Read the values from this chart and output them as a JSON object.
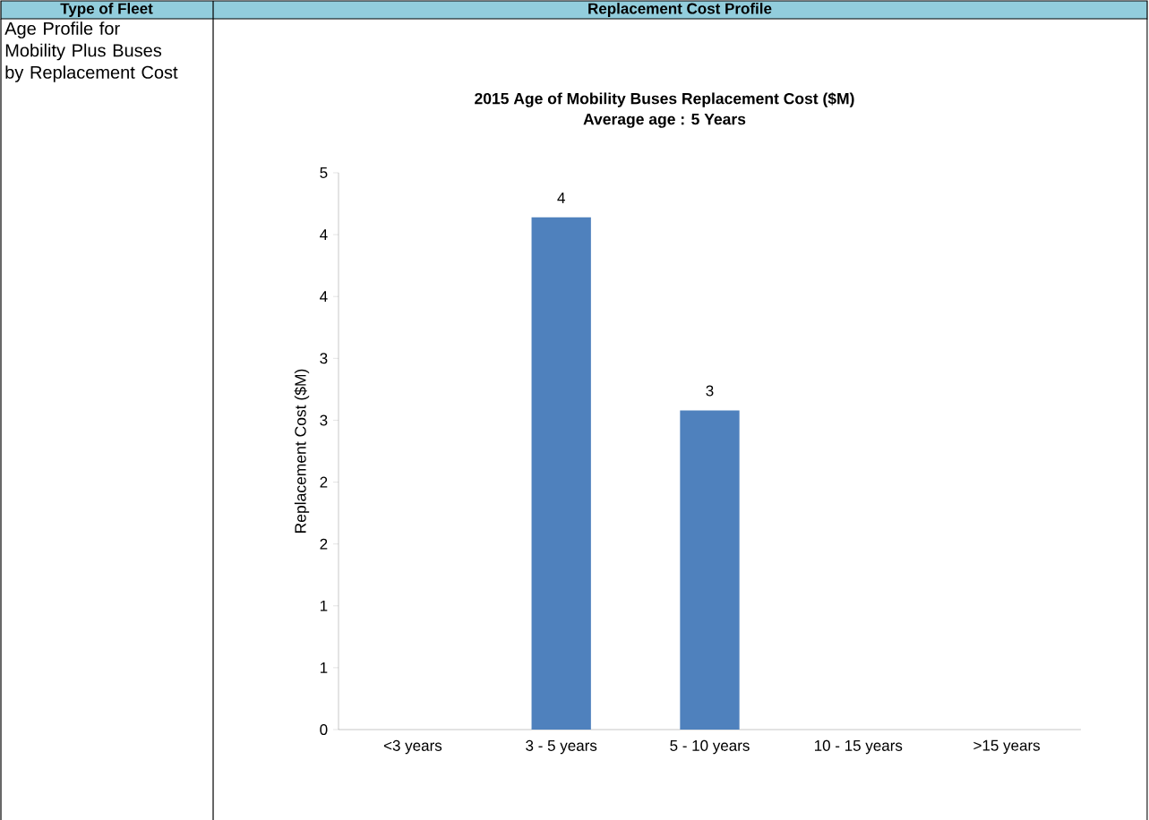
{
  "chart_data": {
    "type": "bar",
    "title": "2015 Age of Mobility Buses Replacement Cost ($M)",
    "subtitle": "Average age : 5 Years",
    "ylabel": "Replacement Cost ($M)",
    "categories": [
      "<3 years",
      "3 - 5 years",
      "5 - 10 years",
      "10 - 15 years",
      ">15 years"
    ],
    "values": [
      0,
      4.14,
      2.58,
      0,
      0
    ],
    "value_labels": [
      null,
      "4",
      "3",
      null,
      null
    ],
    "color": "#4f81bd",
    "ylim": [
      0,
      4.5
    ],
    "yticks": [
      {
        "value": 0,
        "label": "0"
      },
      {
        "value": 0.5,
        "label": "1"
      },
      {
        "value": 1,
        "label": "1"
      },
      {
        "value": 1.5,
        "label": "2"
      },
      {
        "value": 2,
        "label": "2"
      },
      {
        "value": 2.5,
        "label": "3"
      },
      {
        "value": 3,
        "label": "3"
      },
      {
        "value": 3.5,
        "label": "4"
      },
      {
        "value": 4,
        "label": "4"
      },
      {
        "value": 4.5,
        "label": "5"
      }
    ],
    "annotations": [
      "Type of Fleet",
      "Replacement Cost Profile",
      "Age Profile for Mobility Plus Buses by Replacement Cost"
    ]
  }
}
